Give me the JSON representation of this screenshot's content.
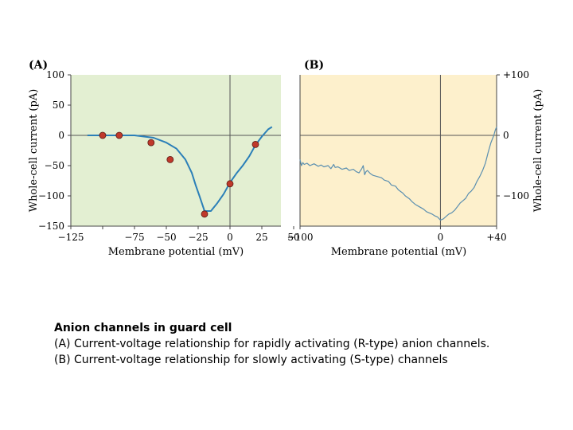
{
  "chart_data": [
    {
      "panel_label": "(A)",
      "type": "line",
      "xlabel": "Membrane potential (mV)",
      "ylabel": "Whole-cell current (pA)",
      "xlim": [
        -125,
        40
      ],
      "ylim": [
        -150,
        100
      ],
      "x_ticks": [
        -125,
        -100,
        -75,
        -50,
        -25,
        0,
        25,
        50
      ],
      "x_tick_labels": [
        "−125",
        "",
        "−75",
        "−50",
        "−25",
        "0",
        "25",
        "50"
      ],
      "y_ticks": [
        100,
        50,
        0,
        -50,
        -100,
        -150
      ],
      "y_tick_labels": [
        "100",
        "50",
        "0",
        "−50",
        "−100",
        "−150"
      ],
      "background": "#e3efd2",
      "line_color": "#2b7fb8",
      "marker_color": "#c0392b",
      "curve": {
        "x": [
          -112,
          -100,
          -87,
          -75,
          -60,
          -50,
          -42,
          -35,
          -30,
          -27,
          -24,
          -20,
          -15,
          -10,
          -5,
          0,
          5,
          10,
          15,
          20,
          25,
          30,
          33
        ],
        "y": [
          0,
          0,
          0,
          0,
          -4,
          -12,
          -22,
          -40,
          -62,
          -82,
          -100,
          -125,
          -125,
          -112,
          -97,
          -78,
          -63,
          -50,
          -35,
          -16,
          -2,
          10,
          14
        ]
      },
      "points": {
        "x": [
          -100,
          -87,
          -62,
          -47,
          -20,
          0,
          20
        ],
        "y": [
          0,
          0,
          -12,
          -40,
          -130,
          -80,
          -15
        ]
      }
    },
    {
      "panel_label": "(B)",
      "type": "line",
      "xlabel": "Membrane potential (mV)",
      "ylabel": "Whole-cell current (pA)",
      "xlim": [
        -100,
        40
      ],
      "ylim": [
        -150,
        100
      ],
      "x_ticks": [
        -100,
        0,
        40
      ],
      "x_tick_labels": [
        "−100",
        "0",
        "+40"
      ],
      "y_ticks": [
        100,
        0,
        -100
      ],
      "y_tick_labels": [
        "+100",
        "0",
        "−100"
      ],
      "background": "#fdf0cc",
      "line_color": "#5b8fb0",
      "trace": {
        "x": [
          -100,
          -99,
          -98,
          -97,
          -95,
          -93,
          -90,
          -87,
          -85,
          -83,
          -80,
          -78,
          -76,
          -75,
          -73,
          -70,
          -67,
          -65,
          -62,
          -60,
          -58,
          -56,
          -55,
          -54,
          -53,
          -52,
          -50,
          -48,
          -45,
          -42,
          -40,
          -37,
          -35,
          -32,
          -30,
          -27,
          -25,
          -22,
          -20,
          -18,
          -15,
          -12,
          -10,
          -8,
          -6,
          -4,
          -2,
          0,
          2,
          4,
          6,
          8,
          10,
          12,
          14,
          16,
          18,
          20,
          22,
          24,
          26,
          28,
          30,
          32,
          34,
          36,
          38,
          39,
          40
        ],
        "y": [
          -40,
          -50,
          -45,
          -48,
          -46,
          -50,
          -47,
          -51,
          -49,
          -52,
          -50,
          -55,
          -48,
          -53,
          -52,
          -56,
          -54,
          -58,
          -56,
          -60,
          -62,
          -55,
          -50,
          -65,
          -60,
          -58,
          -63,
          -66,
          -68,
          -70,
          -74,
          -76,
          -82,
          -84,
          -90,
          -95,
          -100,
          -105,
          -110,
          -114,
          -118,
          -122,
          -126,
          -128,
          -130,
          -133,
          -135,
          -140,
          -138,
          -134,
          -130,
          -128,
          -124,
          -118,
          -112,
          -108,
          -104,
          -96,
          -92,
          -86,
          -76,
          -68,
          -58,
          -46,
          -28,
          -12,
          0,
          8,
          14
        ]
      }
    }
  ],
  "caption": {
    "title": "Anion channels in guard cell",
    "line_a": "(A) Current-voltage relationship for rapidly activating (R-type) anion channels.",
    "line_b": "(B) Current-voltage relationship for slowly activating (S-type) channels"
  }
}
